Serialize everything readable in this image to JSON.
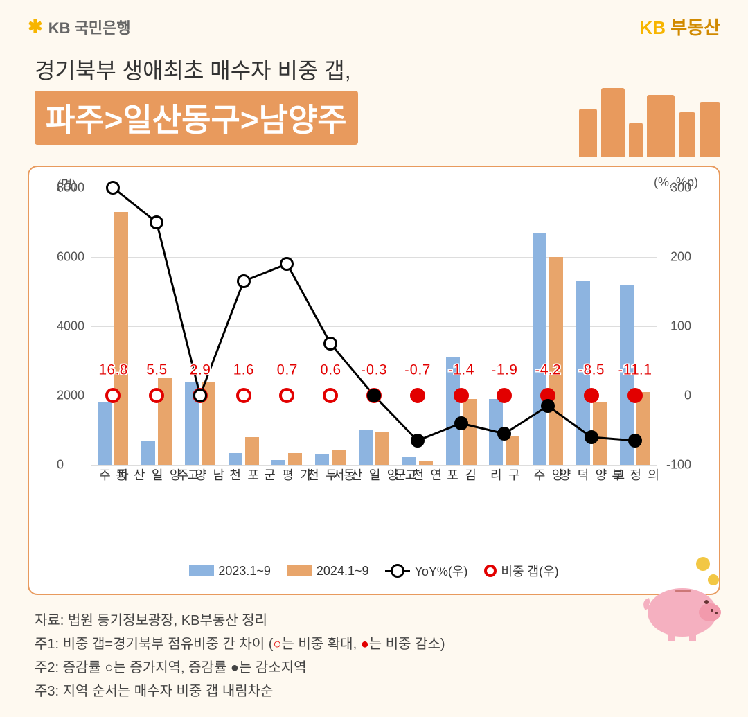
{
  "header": {
    "logo_left": "KB 국민은행",
    "logo_right_kb": "KB",
    "logo_right_re": " 부동산"
  },
  "title": {
    "line1": "경기북부 생애최초 매수자 비중 갭,",
    "line2": "파주>일산동구>남양주"
  },
  "chart": {
    "y_left_label": "(명)",
    "y_right_label": "(%, %p)",
    "left_axis": {
      "min": 0,
      "max": 8000,
      "ticks": [
        0,
        2000,
        4000,
        6000,
        8000
      ]
    },
    "right_axis": {
      "min": -100,
      "max": 300,
      "ticks": [
        -100,
        0,
        100,
        200,
        300
      ]
    },
    "categories": [
      "파주",
      "고양일산동",
      "남양주",
      "포천",
      "가평군",
      "동두천",
      "고양일산서",
      "연천군",
      "김포",
      "구리",
      "양주",
      "고양덕양",
      "의정부"
    ],
    "bar_2023": [
      1800,
      700,
      2400,
      350,
      150,
      300,
      1000,
      250,
      3100,
      1900,
      6700,
      5300,
      5200
    ],
    "bar_2024": [
      7300,
      2500,
      2400,
      800,
      350,
      450,
      950,
      100,
      1900,
      850,
      6000,
      1800,
      2100
    ],
    "yoy_pct": [
      300,
      250,
      0,
      165,
      190,
      75,
      0,
      -65,
      -40,
      -55,
      -15,
      -60,
      -65
    ],
    "yoy_hollow": [
      true,
      true,
      true,
      true,
      true,
      true,
      false,
      false,
      false,
      false,
      false,
      false,
      false
    ],
    "gap_values": [
      "16.8",
      "5.5",
      "2.9",
      "1.6",
      "0.7",
      "0.6",
      "-0.3",
      "-0.7",
      "-1.4",
      "-1.9",
      "-4.2",
      "-8.5",
      "-11.1"
    ],
    "gap_numeric": [
      16.8,
      5.5,
      2.9,
      1.6,
      0.7,
      0.6,
      -0.3,
      -0.7,
      -1.4,
      -1.9,
      -4.2,
      -8.5,
      -11.1
    ],
    "gap_hollow": [
      true,
      true,
      true,
      true,
      true,
      true,
      false,
      false,
      false,
      false,
      false,
      false,
      false
    ],
    "colors": {
      "bar_2023": "#8db4e0",
      "bar_2024": "#e8a56b",
      "line": "#000000",
      "gap_red": "#e20000",
      "grid": "#dddddd",
      "card_border": "#e89a5d",
      "background": "#fef9f0"
    },
    "legend": {
      "s2023": "2023.1~9",
      "s2024": "2024.1~9",
      "yoy": "YoY%(우)",
      "gap": "비중 갭(우)"
    }
  },
  "notes": {
    "source": "자료: 법원 등기정보광장, KB부동산 정리",
    "note1_a": "주1: 비중 갭=경기북부 점유비중 간 차이 (",
    "note1_b": "는 비중 확대, ",
    "note1_c": "는 비중 감소",
    "note1_d": ")",
    "note2": "주2: 증감률 ○는 증가지역, 증감률 ●는 감소지역",
    "note3": "주3: 지역 순서는 매수자 비중 갭 내림차순"
  }
}
